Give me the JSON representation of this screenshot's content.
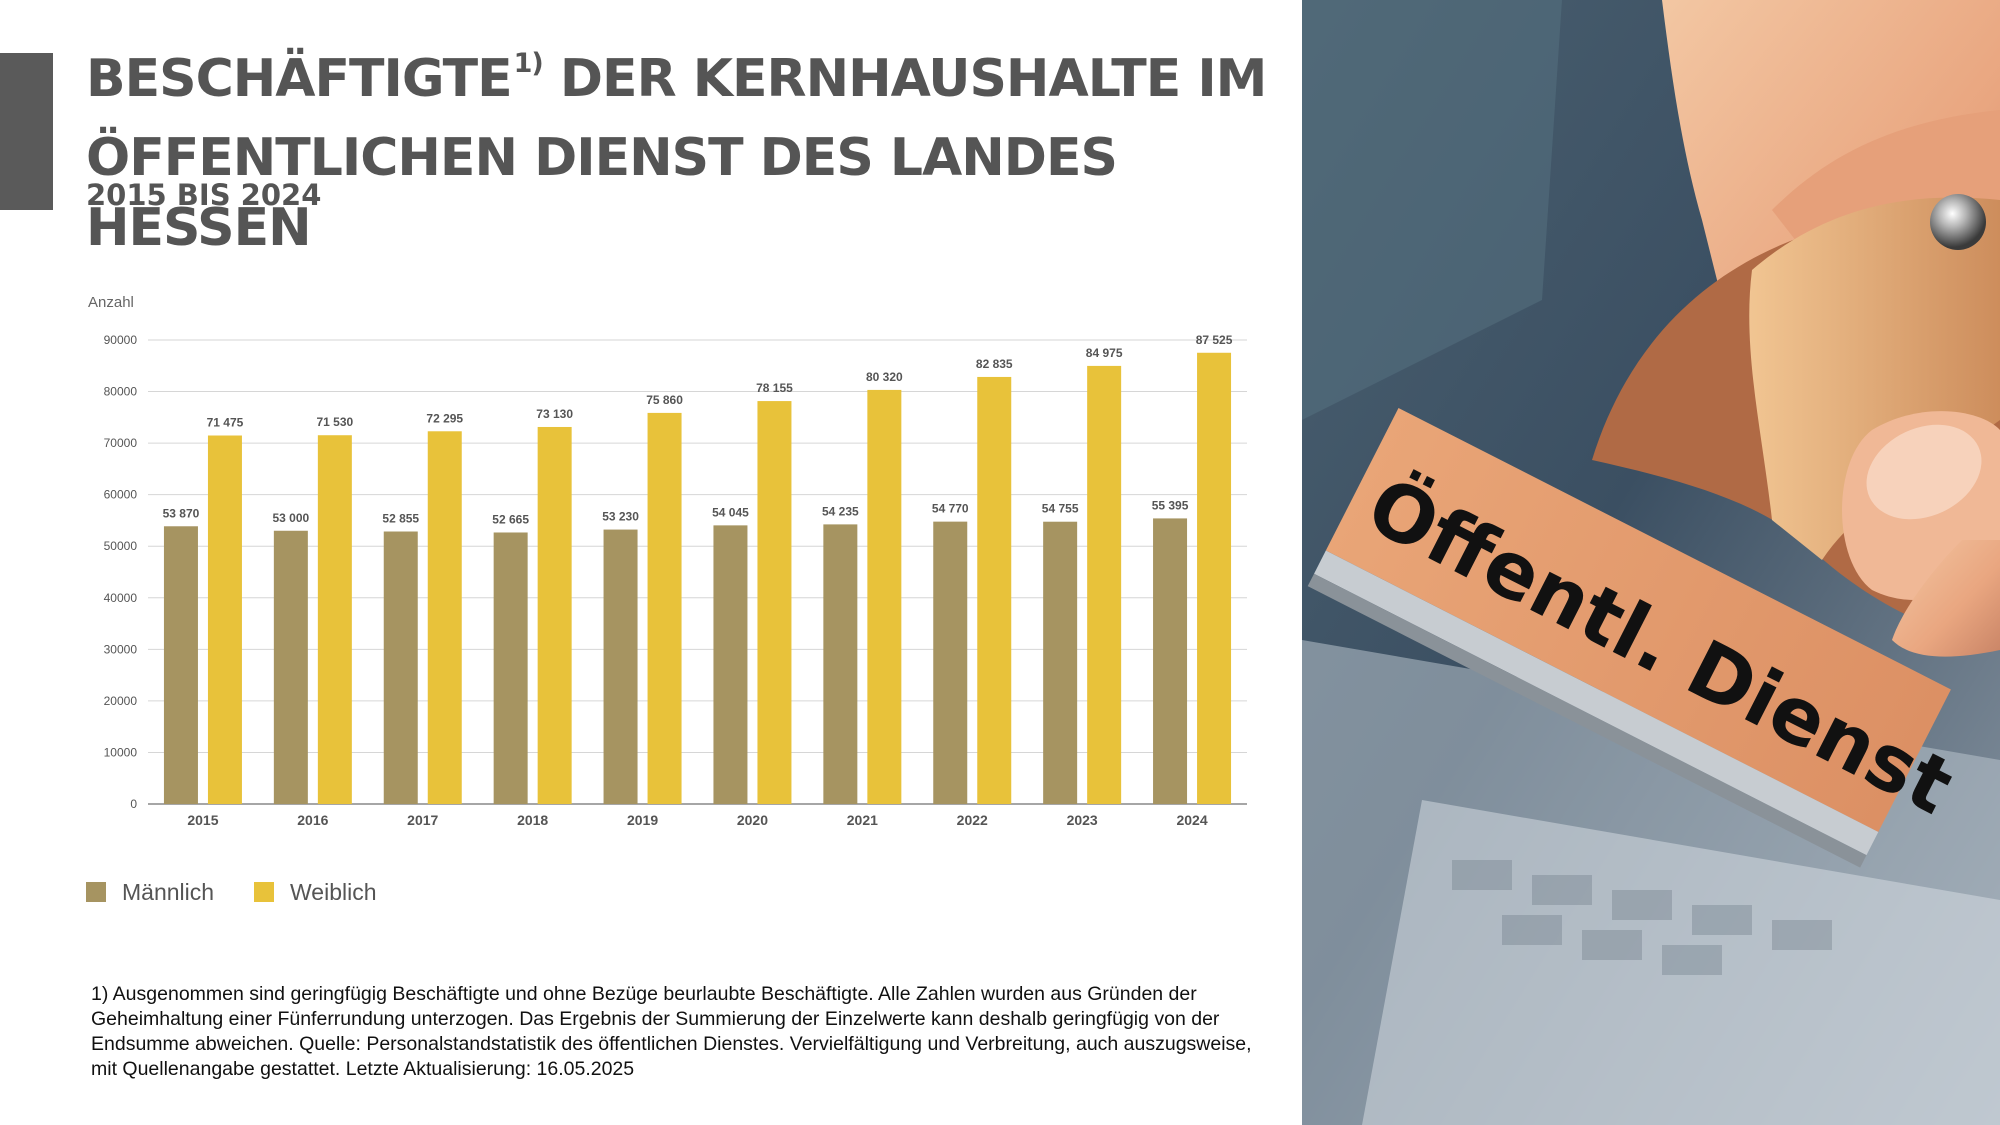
{
  "title_line1": "BESCHÄFTIGTE",
  "title_sup": "1)",
  "title_line1_rest": " DER KERNHAUSHALTE IM",
  "title_line2": "ÖFFENTLICHEN DIENST DES LANDES HESSEN",
  "subtitle": "2015 BIS 2024",
  "legend": [
    {
      "label": "Männlich",
      "color": "#a69461"
    },
    {
      "label": "Weiblich",
      "color": "#e8c23a"
    }
  ],
  "footnote": "1) Ausgenommen sind geringfügig Beschäftigte und ohne Bezüge beurlaubte Beschäftigte. Alle Zahlen wurden aus Gründen der Geheimhaltung einer Fünferrundung unterzogen. Das Ergebnis der Summierung der Einzelwerte kann deshalb geringfügig von der Endsumme abweichen. Quelle: Personalstandstatistik des öffentlichen Dienstes. Vervielfältigung und Verbreitung, auch auszugsweise, mit Quellenangabe gestattet. Letzte Aktualisierung: 16.05.2025",
  "photo": {
    "stamp_text": "Öffentl. Dienst"
  },
  "chart_data": {
    "type": "bar",
    "ylabel": "Anzahl",
    "ylim": [
      0,
      90000
    ],
    "yticks": [
      "0",
      "10000",
      "20000",
      "30000",
      "40000",
      "50000",
      "60000",
      "70000",
      "80000",
      "90000"
    ],
    "grid": true,
    "legend_position": "bottom-left",
    "categories": [
      "2015",
      "2016",
      "2017",
      "2018",
      "2019",
      "2020",
      "2021",
      "2022",
      "2023",
      "2024"
    ],
    "series": [
      {
        "name": "Männlich",
        "color": "#a69461",
        "values": [
          53870,
          53000,
          52855,
          52665,
          53230,
          54045,
          54235,
          54770,
          54755,
          55395
        ],
        "labels": [
          "53 870",
          "53 000",
          "52 855",
          "52 665",
          "53 230",
          "54 045",
          "54 235",
          "54 770",
          "54 755",
          "55 395"
        ]
      },
      {
        "name": "Weiblich",
        "color": "#e8c23a",
        "values": [
          71475,
          71530,
          72295,
          73130,
          75860,
          78155,
          80320,
          82835,
          84975,
          87525
        ],
        "labels": [
          "71 475",
          "71 530",
          "72 295",
          "73 130",
          "75 860",
          "78 155",
          "80 320",
          "82 835",
          "84 975",
          "87 525"
        ]
      }
    ]
  }
}
